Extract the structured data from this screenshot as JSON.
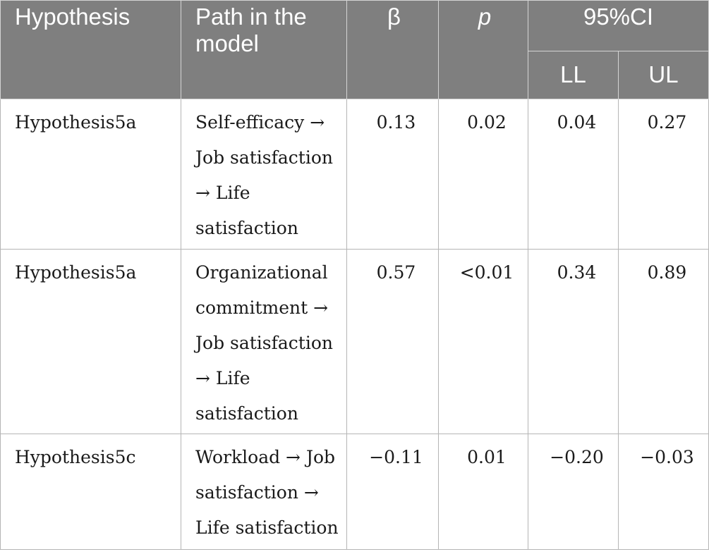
{
  "table": {
    "headers": {
      "hypothesis": "Hypothesis",
      "path": "Path in the model",
      "beta": "β",
      "p": "p",
      "ci": "95%CI",
      "ll": "LL",
      "ul": "UL"
    },
    "rows": [
      {
        "hypothesis": "Hypothesis5a",
        "path": "Self-efficacy → Job satisfaction → Life satisfaction",
        "beta": "0.13",
        "p": "0.02",
        "ll": "0.04",
        "ul": "0.27"
      },
      {
        "hypothesis": "Hypothesis5a",
        "path": "Organizational commitment → Job satisfaction → Life satisfaction",
        "beta": "0.57",
        "p": "<0.01",
        "ll": "0.34",
        "ul": "0.89"
      },
      {
        "hypothesis": "Hypothesis5c",
        "path": "Workload → Job satisfaction → Life satisfaction",
        "beta": "−0.11",
        "p": "0.01",
        "ll": "−0.20",
        "ul": "−0.03"
      }
    ]
  }
}
